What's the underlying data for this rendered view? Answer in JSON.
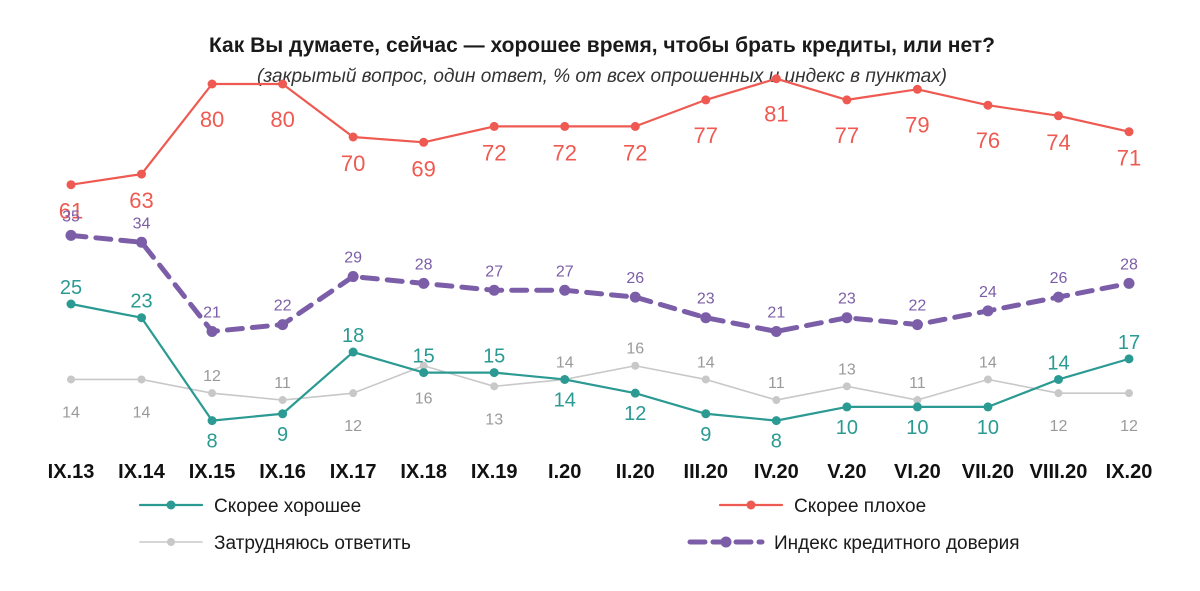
{
  "chart_data": {
    "type": "line",
    "title": "Как Вы думаете, сейчас — хорошее время, чтобы брать кредиты, или нет?",
    "subtitle": "(закрытый вопрос, один ответ, % от всех опрошенных и индекс в пунктах)",
    "categories": [
      "IX.13",
      "IX.14",
      "IX.15",
      "IX.16",
      "IX.17",
      "IX.18",
      "IX.19",
      "I.20",
      "II.20",
      "III.20",
      "IV.20",
      "V.20",
      "VI.20",
      "VII.20",
      "VIII.20",
      "IX.20"
    ],
    "series": [
      {
        "name": "Скорее хорошее",
        "color": "#2a9a92",
        "values": [
          25,
          23,
          8,
          9,
          18,
          15,
          15,
          14,
          12,
          9,
          8,
          10,
          10,
          10,
          14,
          17
        ]
      },
      {
        "name": "Скорее плохое",
        "color": "#ee5a52",
        "values": [
          61,
          63,
          80,
          80,
          70,
          69,
          72,
          72,
          72,
          77,
          81,
          77,
          79,
          76,
          74,
          71
        ]
      },
      {
        "name": "Затрудняюсь ответить",
        "color": "#c8c8c8",
        "values": [
          14,
          14,
          12,
          11,
          12,
          16,
          13,
          14,
          16,
          14,
          11,
          13,
          11,
          14,
          12,
          12
        ]
      },
      {
        "name": "Индекс кредитного доверия",
        "color": "#7b5ea7",
        "values": [
          35,
          34,
          21,
          22,
          29,
          28,
          27,
          27,
          26,
          23,
          21,
          23,
          22,
          24,
          26,
          28
        ]
      }
    ],
    "legend_position": "bottom",
    "grid": false
  }
}
